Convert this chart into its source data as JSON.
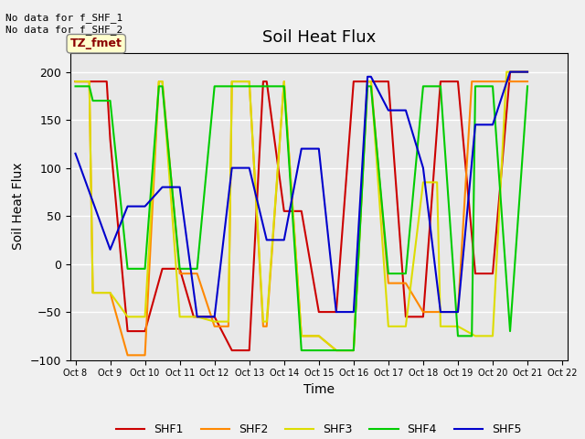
{
  "title": "Soil Heat Flux",
  "xlabel": "Time",
  "ylabel": "Soil Heat Flux",
  "annotation_text": "No data for f_SHF_1\nNo data for f_SHF_2",
  "box_label": "TZ_fmet",
  "ylim": [
    -100,
    220
  ],
  "yticks": [
    -100,
    -50,
    0,
    50,
    100,
    150,
    200
  ],
  "series": {
    "SHF1": {
      "color": "#cc0000",
      "x": [
        8.0,
        8.9,
        9.0,
        9.5,
        10.0,
        10.5,
        11.0,
        11.4,
        11.5,
        12.0,
        12.5,
        13.0,
        13.4,
        13.5,
        14.0,
        14.5,
        15.0,
        15.5,
        16.0,
        16.5,
        17.0,
        17.5,
        18.0,
        18.5,
        19.0,
        19.5,
        20.0,
        20.5,
        21.0
      ],
      "y": [
        190,
        190,
        130,
        -70,
        -70,
        -5,
        -5,
        -55,
        -55,
        -55,
        -90,
        -90,
        190,
        190,
        55,
        55,
        -50,
        -50,
        190,
        190,
        190,
        -55,
        -55,
        190,
        190,
        -10,
        -10,
        200,
        200
      ]
    },
    "SHF2": {
      "color": "#ff8800",
      "x": [
        8.0,
        8.4,
        8.5,
        9.0,
        9.5,
        10.0,
        10.4,
        10.5,
        11.0,
        11.5,
        12.0,
        12.4,
        12.5,
        13.0,
        13.4,
        13.5,
        14.0,
        14.5,
        15.0,
        15.5,
        16.0,
        16.4,
        16.5,
        17.0,
        17.5,
        18.0,
        18.5,
        19.0,
        19.4,
        19.5,
        20.0,
        20.4,
        20.5,
        21.0
      ],
      "y": [
        190,
        190,
        -30,
        -30,
        -95,
        -95,
        190,
        190,
        -10,
        -10,
        -65,
        -65,
        190,
        190,
        -65,
        -65,
        190,
        -75,
        -75,
        -90,
        -90,
        190,
        190,
        -20,
        -20,
        -50,
        -50,
        -50,
        190,
        190,
        190,
        190,
        190,
        190
      ]
    },
    "SHF3": {
      "color": "#dddd00",
      "x": [
        8.0,
        8.4,
        8.5,
        9.0,
        9.5,
        10.0,
        10.4,
        10.5,
        11.0,
        11.5,
        12.0,
        12.4,
        12.5,
        13.0,
        13.4,
        13.5,
        14.0,
        14.5,
        15.0,
        15.5,
        16.0,
        16.4,
        16.5,
        17.0,
        17.5,
        18.0,
        18.4,
        18.5,
        19.0,
        19.5,
        20.0,
        20.4,
        20.5,
        21.0
      ],
      "y": [
        190,
        190,
        -30,
        -30,
        -55,
        -55,
        190,
        190,
        -55,
        -55,
        -60,
        -60,
        190,
        190,
        -60,
        -60,
        190,
        -75,
        -75,
        -90,
        -90,
        190,
        190,
        -65,
        -65,
        85,
        85,
        -65,
        -65,
        -75,
        -75,
        200,
        200,
        200
      ]
    },
    "SHF4": {
      "color": "#00cc00",
      "x": [
        8.0,
        8.4,
        8.5,
        9.0,
        9.5,
        10.0,
        10.4,
        10.5,
        11.0,
        11.5,
        12.0,
        12.4,
        12.5,
        13.0,
        13.4,
        13.5,
        14.0,
        14.5,
        15.0,
        15.5,
        16.0,
        16.4,
        16.5,
        17.0,
        17.5,
        18.0,
        18.4,
        18.5,
        19.0,
        19.4,
        19.5,
        20.0,
        20.5,
        21.0
      ],
      "y": [
        185,
        185,
        170,
        170,
        -5,
        -5,
        185,
        185,
        -5,
        -5,
        185,
        185,
        185,
        185,
        185,
        185,
        185,
        -90,
        -90,
        -90,
        -90,
        185,
        185,
        -10,
        -10,
        185,
        185,
        185,
        -75,
        -75,
        185,
        185,
        -70,
        185
      ]
    },
    "SHF5": {
      "color": "#0000cc",
      "x": [
        8.0,
        9.0,
        9.5,
        10.0,
        10.5,
        11.0,
        11.5,
        12.0,
        12.5,
        13.0,
        13.5,
        14.0,
        14.5,
        15.0,
        15.5,
        16.0,
        16.4,
        16.5,
        17.0,
        17.5,
        18.0,
        18.5,
        19.0,
        19.5,
        20.0,
        20.5,
        21.0
      ],
      "y": [
        115,
        15,
        60,
        60,
        80,
        80,
        -55,
        -55,
        100,
        100,
        25,
        25,
        120,
        120,
        -50,
        -50,
        195,
        195,
        160,
        160,
        100,
        -50,
        -50,
        145,
        145,
        200,
        200
      ]
    }
  },
  "figsize": [
    6.4,
    4.8
  ],
  "dpi": 100,
  "plot_bg_color": "#e8e8e8",
  "fig_bg_color": "#f0f0f0",
  "xlim": [
    7.85,
    22.15
  ],
  "xtick_positions": [
    8,
    9,
    10,
    11,
    12,
    13,
    14,
    15,
    16,
    17,
    18,
    19,
    20,
    21,
    22
  ],
  "xtick_labels": [
    "Oct 8",
    "Oct 9",
    "Oct 10",
    "Oct 11",
    "Oct 12",
    "Oct 13",
    "Oct 14",
    "Oct 15",
    "Oct 16",
    "Oct 17",
    "Oct 18",
    "Oct 19",
    "Oct 20",
    "Oct 21",
    "Oct 22"
  ]
}
